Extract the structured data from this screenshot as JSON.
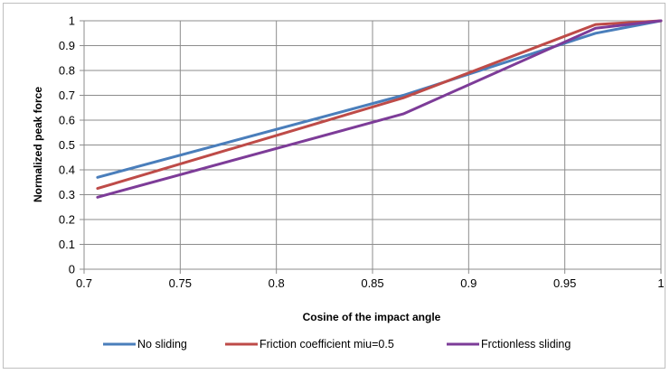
{
  "chart_data": {
    "type": "line",
    "title": "",
    "xlabel": "Cosine of the impact angle",
    "ylabel": "Normalized peak force",
    "xlim": [
      0.7,
      1.0
    ],
    "ylim": [
      0,
      1
    ],
    "x_ticks": [
      "0.7",
      "0.75",
      "0.8",
      "0.85",
      "0.9",
      "0.95",
      "1"
    ],
    "y_ticks": [
      "0",
      "0.1",
      "0.2",
      "0.3",
      "0.4",
      "0.5",
      "0.6",
      "0.7",
      "0.8",
      "0.9",
      "1"
    ],
    "grid": true,
    "legend_position": "bottom",
    "series": [
      {
        "name": "No sliding",
        "color": "#4a7ebb",
        "x": [
          0.707,
          0.866,
          0.966,
          1.0
        ],
        "y": [
          0.37,
          0.7,
          0.95,
          1.0
        ]
      },
      {
        "name": "Friction coefficient miu=0.5",
        "color": "#be4b48",
        "x": [
          0.707,
          0.866,
          0.966,
          1.0
        ],
        "y": [
          0.325,
          0.69,
          0.985,
          1.0
        ]
      },
      {
        "name": "Frctionless sliding",
        "color": "#7d3c98",
        "x": [
          0.707,
          0.866,
          0.966,
          1.0
        ],
        "y": [
          0.29,
          0.625,
          0.97,
          1.0
        ]
      }
    ]
  }
}
